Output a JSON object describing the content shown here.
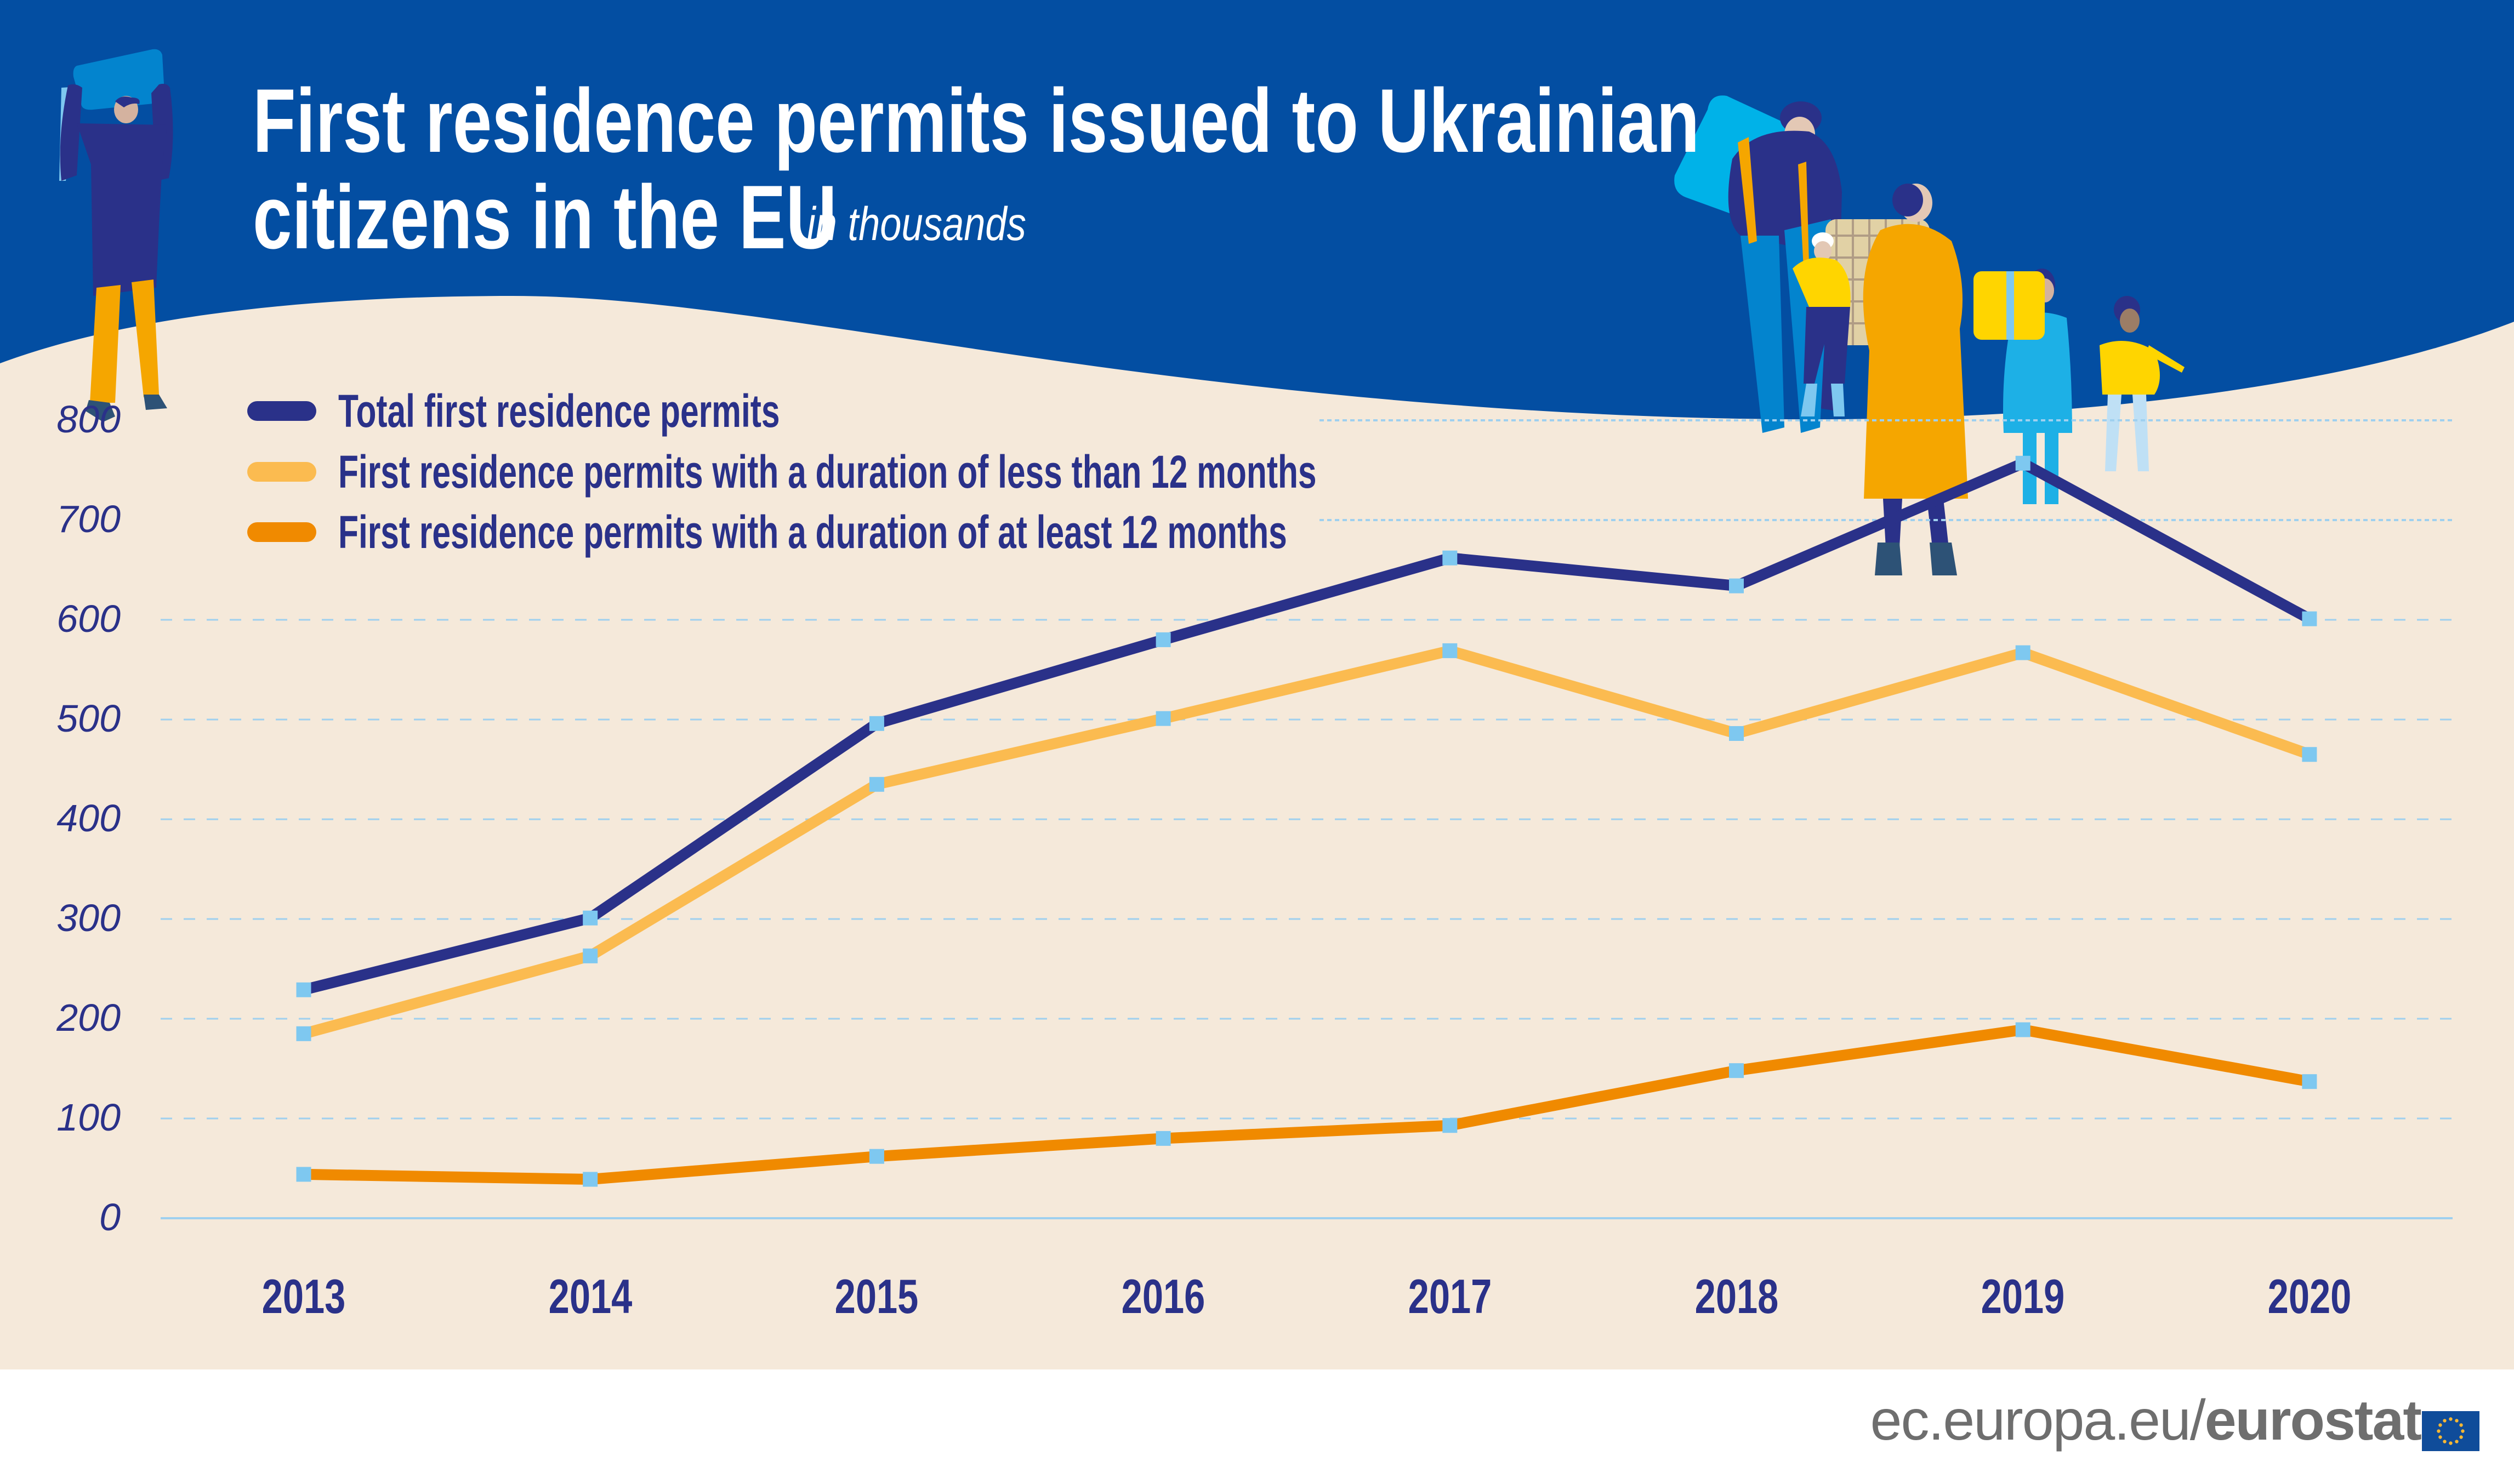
{
  "header": {
    "title_line1": "First residence permits issued to Ukrainian",
    "title_line2": "citizens in the EU",
    "subtitle": "in thousands"
  },
  "colors": {
    "header_bg": "#034ea2",
    "plot_bg": "#f5e9da",
    "text": "#2a3189",
    "marker": "#7ec8f0",
    "gridline": "#9fd0ef"
  },
  "legend": [
    {
      "label": "Total first residence permits",
      "color": "#2a3189"
    },
    {
      "label": "First residence permits with a duration of less than 12 months",
      "color": "#fbbb50"
    },
    {
      "label": "First residence permits with a duration of at least 12 months",
      "color": "#f08a00"
    }
  ],
  "chart_data": {
    "type": "line",
    "title": "First residence permits issued to Ukrainian citizens in the EU",
    "subtitle": "in thousands",
    "xlabel": "",
    "ylabel": "",
    "categories": [
      "2013",
      "2014",
      "2015",
      "2016",
      "2017",
      "2018",
      "2019",
      "2020"
    ],
    "yticks": [
      0,
      100,
      200,
      300,
      400,
      500,
      600,
      700,
      800
    ],
    "ylim": [
      0,
      800
    ],
    "grid": true,
    "legend_position": "top-left",
    "series": [
      {
        "name": "Total first residence permits",
        "color": "#2a3189",
        "values": [
          229,
          301,
          496,
          580,
          662,
          634,
          757,
          601
        ]
      },
      {
        "name": "First residence permits with a duration of less than 12 months",
        "color": "#fbbb50",
        "values": [
          185,
          263,
          435,
          501,
          569,
          486,
          567,
          465
        ]
      },
      {
        "name": "First residence permits with a duration of at least 12 months",
        "color": "#f08a00",
        "values": [
          44,
          39,
          62,
          80,
          93,
          148,
          189,
          137
        ]
      }
    ]
  },
  "footer": {
    "url_prefix": "ec.europa.eu/",
    "url_brand": "eurostat",
    "logo_icon": "eu-flag-icon"
  }
}
